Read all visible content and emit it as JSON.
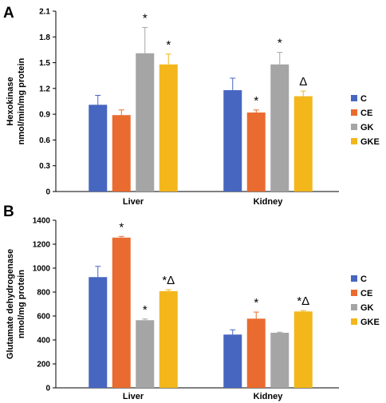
{
  "chart_data": [
    {
      "type": "bar",
      "panel": "A",
      "ylabel": [
        "Hexokinase",
        "nmol/min/mg protein"
      ],
      "categories": [
        "Liver",
        "Kidney"
      ],
      "ylim": [
        0,
        2.1
      ],
      "yticks": [
        "0",
        "0.3",
        "0.6",
        "0.9",
        "1.2",
        "1.5",
        "1.8",
        "2.1"
      ],
      "legend_position": "right",
      "series": [
        {
          "name": "C",
          "color": "#4666c0",
          "values": [
            1.01,
            1.18
          ],
          "errors": [
            0.11,
            0.14
          ],
          "annotations": [
            "",
            ""
          ]
        },
        {
          "name": "CE",
          "color": "#ea6b2f",
          "values": [
            0.89,
            0.92
          ],
          "errors": [
            0.06,
            0.03
          ],
          "annotations": [
            "",
            "*"
          ]
        },
        {
          "name": "GK",
          "color": "#a5a5a5",
          "values": [
            1.61,
            1.48
          ],
          "errors": [
            0.3,
            0.14
          ],
          "annotations": [
            "*",
            "*"
          ]
        },
        {
          "name": "GKE",
          "color": "#f3b71c",
          "values": [
            1.48,
            1.11
          ],
          "errors": [
            0.12,
            0.06
          ],
          "annotations": [
            "*",
            "Δ"
          ]
        }
      ]
    },
    {
      "type": "bar",
      "panel": "B",
      "ylabel": [
        "Glutamate dehydrogenase",
        "nmol/mg protein"
      ],
      "categories": [
        "Liver",
        "Kidney"
      ],
      "ylim": [
        0,
        1400
      ],
      "yticks": [
        "0",
        "200",
        "400",
        "600",
        "800",
        "1000",
        "1200",
        "1400"
      ],
      "legend_position": "right",
      "series": [
        {
          "name": "C",
          "color": "#4666c0",
          "values": [
            925,
            445
          ],
          "errors": [
            90,
            40
          ],
          "annotations": [
            "",
            ""
          ]
        },
        {
          "name": "CE",
          "color": "#ea6b2f",
          "values": [
            1255,
            578
          ],
          "errors": [
            10,
            55
          ],
          "annotations": [
            "*",
            "*"
          ]
        },
        {
          "name": "GK",
          "color": "#a5a5a5",
          "values": [
            565,
            460
          ],
          "errors": [
            10,
            5
          ],
          "annotations": [
            "*",
            ""
          ]
        },
        {
          "name": "GKE",
          "color": "#f3b71c",
          "values": [
            808,
            638
          ],
          "errors": [
            12,
            8
          ],
          "annotations": [
            "*Δ",
            "*Δ"
          ]
        }
      ]
    }
  ]
}
